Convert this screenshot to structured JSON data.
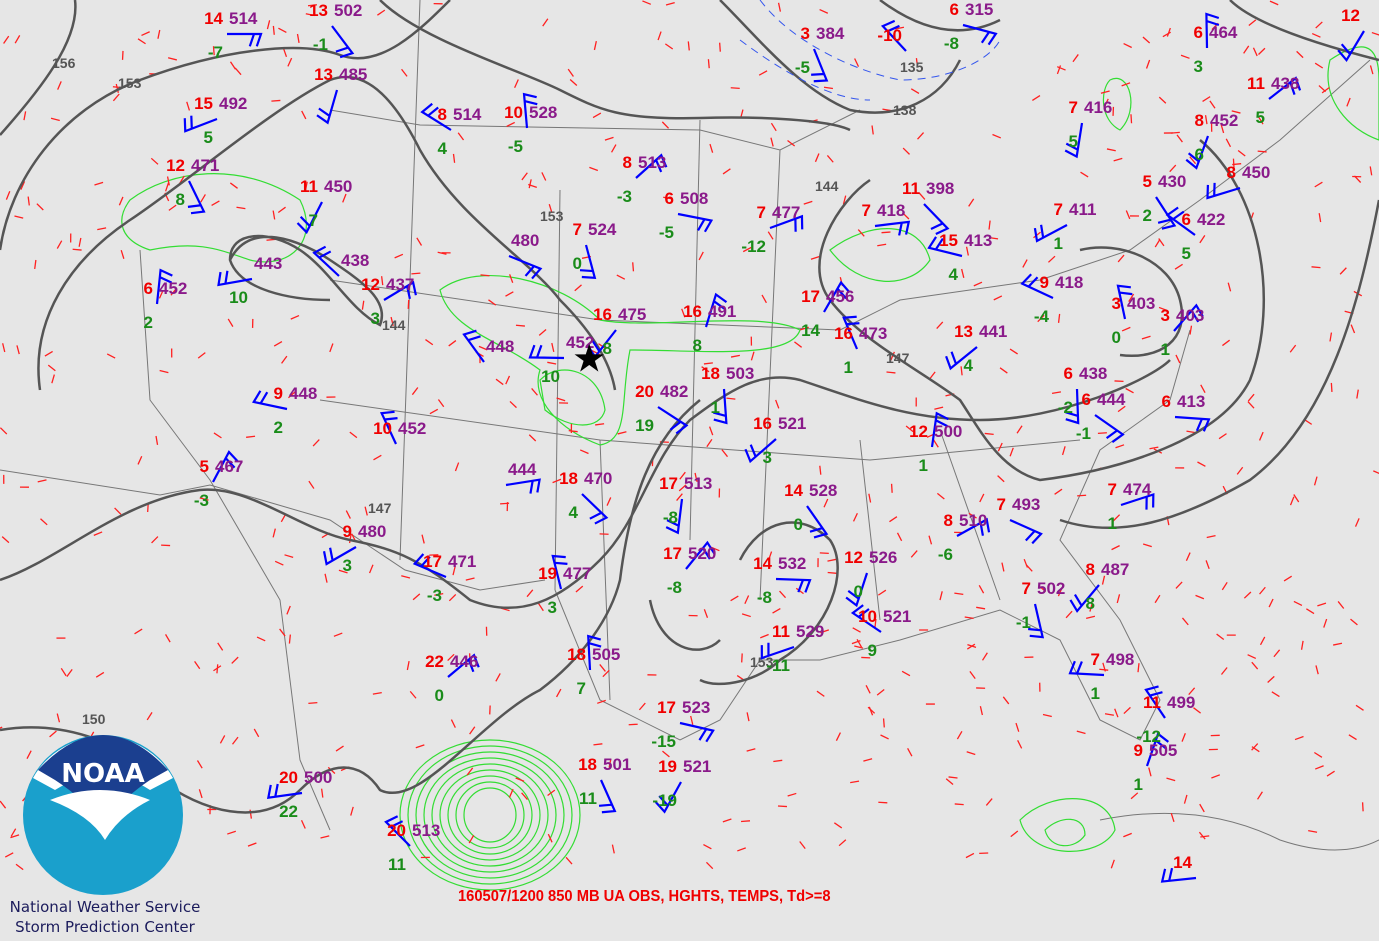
{
  "title": "160507/1200 850 MB UA OBS, HGHTS, TEMPS, Td>=8",
  "organization": {
    "line1": "National Weather Service",
    "line2": "Storm Prediction Center"
  },
  "logo": {
    "text": "NOAA",
    "colors": {
      "top": "#1b3f8f",
      "bottom": "#1aa0cc"
    }
  },
  "colors": {
    "temperature": "#f00000",
    "dewpoint": "#1a8c1a",
    "height": "#8a1a8a",
    "wind_barb": "#0000ff",
    "height_contour": "#555555",
    "isotherm": "#ff2020",
    "dewpoint_contour": "#33dd33"
  },
  "marker": {
    "icon": "star-icon"
  },
  "contour_labels": [
    "156",
    "153",
    "150",
    "147",
    "144",
    "147",
    "138",
    "135",
    "144",
    "153",
    "153"
  ],
  "stations": [
    {
      "t": "14",
      "td": "-7",
      "h": "514"
    },
    {
      "t": "13",
      "td": "-1",
      "h": "502"
    },
    {
      "t": "13",
      "td": "",
      "h": "485"
    },
    {
      "t": "15",
      "td": "5",
      "h": "492"
    },
    {
      "t": "8",
      "td": "4",
      "h": "514"
    },
    {
      "t": "10",
      "td": "-5",
      "h": "528"
    },
    {
      "t": "8",
      "td": "-3",
      "h": "513"
    },
    {
      "t": "6",
      "td": "-5",
      "h": "508"
    },
    {
      "t": "12",
      "td": "8",
      "h": "471"
    },
    {
      "t": "11",
      "td": "7",
      "h": "450"
    },
    {
      "t": "",
      "td": "10",
      "h": "443"
    },
    {
      "t": "",
      "td": "",
      "h": "438"
    },
    {
      "t": "6",
      "td": "2",
      "h": "452"
    },
    {
      "t": "12",
      "td": "3",
      "h": "437"
    },
    {
      "t": "",
      "td": "",
      "h": "480"
    },
    {
      "t": "7",
      "td": "0",
      "h": "524"
    },
    {
      "t": "16",
      "td": "8",
      "h": "475"
    },
    {
      "t": "",
      "td": "10",
      "h": "452"
    },
    {
      "t": "",
      "td": "",
      "h": "448"
    },
    {
      "t": "16",
      "td": "8",
      "h": "491"
    },
    {
      "t": "7",
      "td": "-12",
      "h": "477"
    },
    {
      "t": "20",
      "td": "19",
      "h": "482"
    },
    {
      "t": "18",
      "td": "1",
      "h": "503"
    },
    {
      "t": "16",
      "td": "3",
      "h": "521"
    },
    {
      "t": "9",
      "td": "2",
      "h": "448"
    },
    {
      "t": "10",
      "td": "",
      "h": "452"
    },
    {
      "t": "5",
      "td": "-3",
      "h": "467"
    },
    {
      "t": "",
      "td": "",
      "h": "444"
    },
    {
      "t": "18",
      "td": "4",
      "h": "470"
    },
    {
      "t": "17",
      "td": "-8",
      "h": "513"
    },
    {
      "t": "9",
      "td": "3",
      "h": "480"
    },
    {
      "t": "17",
      "td": "-3",
      "h": "471"
    },
    {
      "t": "19",
      "td": "3",
      "h": "477"
    },
    {
      "t": "17",
      "td": "-8",
      "h": "520"
    },
    {
      "t": "14",
      "td": "-8",
      "h": "532"
    },
    {
      "t": "14",
      "td": "0",
      "h": "528"
    },
    {
      "t": "12",
      "td": "0",
      "h": "526"
    },
    {
      "t": "11",
      "td": "-11",
      "h": "529"
    },
    {
      "t": "10",
      "td": "9",
      "h": "521"
    },
    {
      "t": "18",
      "td": "7",
      "h": "505"
    },
    {
      "t": "22",
      "td": "0",
      "h": "446"
    },
    {
      "t": "17",
      "td": "-15",
      "h": "523"
    },
    {
      "t": "18",
      "td": "11",
      "h": "501"
    },
    {
      "t": "19",
      "td": "-19",
      "h": "521"
    },
    {
      "t": "20",
      "td": "22",
      "h": "500"
    },
    {
      "t": "20",
      "td": "11",
      "h": "513"
    },
    {
      "t": "12",
      "td": "1",
      "h": "500"
    },
    {
      "t": "8",
      "td": "-6",
      "h": "510"
    },
    {
      "t": "7",
      "td": "",
      "h": "493"
    },
    {
      "t": "7",
      "td": "-1",
      "h": "502"
    },
    {
      "t": "8",
      "td": "8",
      "h": "487"
    },
    {
      "t": "7",
      "td": "1",
      "h": "498"
    },
    {
      "t": "11",
      "td": "-12",
      "h": "499"
    },
    {
      "t": "9",
      "td": "1",
      "h": "505"
    },
    {
      "t": "7",
      "td": "1",
      "h": "474"
    },
    {
      "t": "6",
      "td": "-1",
      "h": "444"
    },
    {
      "t": "6",
      "td": "-2",
      "h": "438"
    },
    {
      "t": "13",
      "td": "4",
      "h": "441"
    },
    {
      "t": "15",
      "td": "4",
      "h": "413"
    },
    {
      "t": "16",
      "td": "1",
      "h": "473"
    },
    {
      "t": "17",
      "td": "14",
      "h": "456"
    },
    {
      "t": "7",
      "td": "",
      "h": "418"
    },
    {
      "t": "11",
      "td": "",
      "h": "398"
    },
    {
      "t": "7",
      "td": "5",
      "h": "416"
    },
    {
      "t": "7",
      "td": "1",
      "h": "411"
    },
    {
      "t": "9",
      "td": "-4",
      "h": "418"
    },
    {
      "t": "3",
      "td": "0",
      "h": "403"
    },
    {
      "t": "3",
      "td": "1",
      "h": "403"
    },
    {
      "t": "6",
      "td": "",
      "h": "413"
    },
    {
      "t": "5",
      "td": "2",
      "h": "430"
    },
    {
      "t": "8",
      "td": "6",
      "h": "452"
    },
    {
      "t": "8",
      "td": "",
      "h": "450"
    },
    {
      "t": "6",
      "td": "5",
      "h": "422"
    },
    {
      "t": "6",
      "td": "3",
      "h": "464"
    },
    {
      "t": "11",
      "td": "5",
      "h": "438"
    },
    {
      "t": "6",
      "td": "-8",
      "h": "315"
    },
    {
      "t": "3",
      "td": "-5",
      "h": "384"
    },
    {
      "t": "12",
      "td": "",
      "h": ""
    },
    {
      "t": "14",
      "td": "",
      "h": ""
    },
    {
      "t": "-10",
      "td": "",
      "h": ""
    }
  ]
}
